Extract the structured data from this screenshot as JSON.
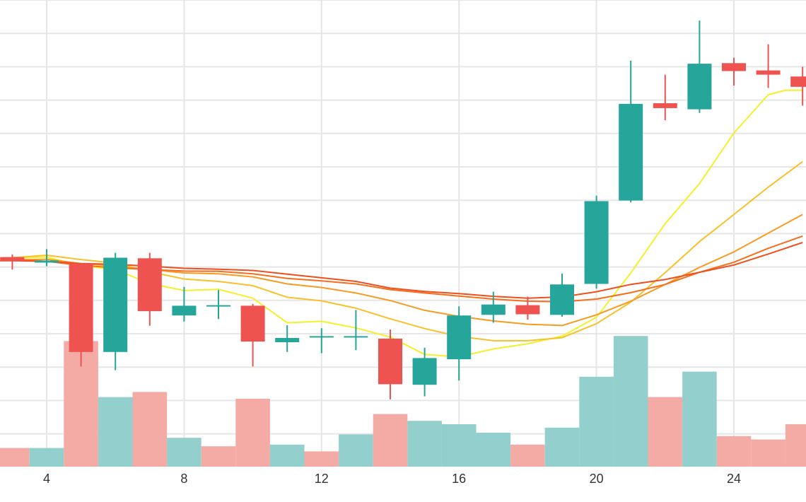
{
  "chart_data": {
    "type": "candlestick",
    "x_ticks": [
      "4",
      "8",
      "12",
      "16",
      "20",
      "24"
    ],
    "candles": [
      {
        "x": 3,
        "open": 66.6,
        "close": 65.2,
        "high": 67.5,
        "low": 62.5
      },
      {
        "x": 4,
        "open": 64.8,
        "close": 65.5,
        "high": 69.2,
        "low": 63.6
      },
      {
        "x": 5,
        "open": 64.5,
        "close": 35.4,
        "high": 64.5,
        "low": 30.6
      },
      {
        "x": 6,
        "open": 35.4,
        "close": 66.4,
        "high": 68.0,
        "low": 29.4
      },
      {
        "x": 7,
        "open": 66.2,
        "close": 48.8,
        "high": 68.0,
        "low": 44.0
      },
      {
        "x": 8,
        "open": 47.4,
        "close": 50.6,
        "high": 56.8,
        "low": 45.4
      },
      {
        "x": 9,
        "open": 50.8,
        "close": 50.8,
        "high": 55.8,
        "low": 46.2
      },
      {
        "x": 10,
        "open": 50.6,
        "close": 38.8,
        "high": 51.2,
        "low": 30.6
      },
      {
        "x": 11,
        "open": 38.6,
        "close": 40.0,
        "high": 44.2,
        "low": 35.4
      },
      {
        "x": 12,
        "open": 40.6,
        "close": 40.6,
        "high": 43.2,
        "low": 35.0
      },
      {
        "x": 13,
        "open": 40.6,
        "close": 40.6,
        "high": 49.2,
        "low": 36.0
      },
      {
        "x": 14,
        "open": 39.8,
        "close": 24.8,
        "high": 42.8,
        "low": 19.8
      },
      {
        "x": 15,
        "open": 24.6,
        "close": 33.4,
        "high": 36.8,
        "low": 20.8
      },
      {
        "x": 16,
        "open": 33.0,
        "close": 47.4,
        "high": 50.4,
        "low": 26.0
      },
      {
        "x": 17,
        "open": 47.6,
        "close": 51.0,
        "high": 55.2,
        "low": 45.0
      },
      {
        "x": 18,
        "open": 50.8,
        "close": 47.8,
        "high": 53.6,
        "low": 46.0
      },
      {
        "x": 19,
        "open": 47.6,
        "close": 57.6,
        "high": 61.2,
        "low": 47.0
      },
      {
        "x": 20,
        "open": 57.8,
        "close": 85.0,
        "high": 86.8,
        "low": 56.2
      },
      {
        "x": 21,
        "open": 85.2,
        "close": 117.0,
        "high": 131.2,
        "low": 84.6
      },
      {
        "x": 22,
        "open": 117.2,
        "close": 115.6,
        "high": 126.6,
        "low": 111.6
      },
      {
        "x": 23,
        "open": 115.2,
        "close": 130.2,
        "high": 144.4,
        "low": 114.0
      },
      {
        "x": 24,
        "open": 130.4,
        "close": 127.8,
        "high": 132.2,
        "low": 123.0
      },
      {
        "x": 25,
        "open": 128.0,
        "close": 126.6,
        "high": 136.6,
        "low": 122.2
      },
      {
        "x": 26,
        "open": 126.0,
        "close": 122.6,
        "high": 129.2,
        "low": 116.4
      }
    ],
    "volume": [
      {
        "x": 3,
        "value": 11,
        "dir": "down"
      },
      {
        "x": 4,
        "value": 11,
        "dir": "up"
      },
      {
        "x": 5,
        "value": 74,
        "dir": "down"
      },
      {
        "x": 6,
        "value": 41,
        "dir": "up"
      },
      {
        "x": 7,
        "value": 44,
        "dir": "down"
      },
      {
        "x": 8,
        "value": 17,
        "dir": "up"
      },
      {
        "x": 9,
        "value": 12,
        "dir": "down"
      },
      {
        "x": 10,
        "value": 40,
        "dir": "down"
      },
      {
        "x": 11,
        "value": 13,
        "dir": "up"
      },
      {
        "x": 12,
        "value": 9,
        "dir": "down"
      },
      {
        "x": 13,
        "value": 19,
        "dir": "up"
      },
      {
        "x": 14,
        "value": 31,
        "dir": "down"
      },
      {
        "x": 15,
        "value": 27,
        "dir": "up"
      },
      {
        "x": 16,
        "value": 25,
        "dir": "up"
      },
      {
        "x": 17,
        "value": 20,
        "dir": "up"
      },
      {
        "x": 18,
        "value": 13,
        "dir": "down"
      },
      {
        "x": 19,
        "value": 23,
        "dir": "up"
      },
      {
        "x": 20,
        "value": 53,
        "dir": "up"
      },
      {
        "x": 21,
        "value": 77,
        "dir": "up"
      },
      {
        "x": 22,
        "value": 41,
        "dir": "down"
      },
      {
        "x": 23,
        "value": 56,
        "dir": "up"
      },
      {
        "x": 24,
        "value": 18,
        "dir": "down"
      },
      {
        "x": 25,
        "value": 16,
        "dir": "down"
      },
      {
        "x": 26,
        "value": 25,
        "dir": "down"
      }
    ],
    "moving_averages": [
      {
        "color": "#f5ef2a",
        "points": [
          [
            2.5,
            66.2
          ],
          [
            3,
            66.3
          ],
          [
            4,
            66.6
          ],
          [
            5,
            63.8
          ],
          [
            6,
            62.5
          ],
          [
            7,
            57.9
          ],
          [
            8,
            55.6
          ],
          [
            9,
            56.0
          ],
          [
            10,
            53.1
          ],
          [
            11,
            45.0
          ],
          [
            12,
            45.5
          ],
          [
            13,
            43.3
          ],
          [
            14,
            40.3
          ],
          [
            15,
            34.6
          ],
          [
            16,
            33.8
          ],
          [
            17,
            36.4
          ],
          [
            18,
            38.1
          ],
          [
            19,
            40.6
          ],
          [
            20,
            46.8
          ],
          [
            21,
            61.4
          ],
          [
            22,
            77.6
          ],
          [
            23,
            90.8
          ],
          [
            24,
            107.4
          ],
          [
            25,
            120.0
          ],
          [
            25.5,
            121.5
          ],
          [
            26,
            121.5
          ]
        ]
      },
      {
        "color": "#f8c02b",
        "points": [
          [
            2.5,
            66.2
          ],
          [
            3,
            66.4
          ],
          [
            4,
            67.2
          ],
          [
            5,
            65.8
          ],
          [
            6,
            64.6
          ],
          [
            7,
            61.8
          ],
          [
            8,
            59.4
          ],
          [
            9,
            58.6
          ],
          [
            10,
            57.2
          ],
          [
            11,
            53.4
          ],
          [
            12,
            52.2
          ],
          [
            13,
            49.8
          ],
          [
            14,
            46.3
          ],
          [
            15,
            43.1
          ],
          [
            16,
            40.5
          ],
          [
            17,
            39.1
          ],
          [
            18,
            39.1
          ],
          [
            19,
            40.1
          ],
          [
            20,
            44.7
          ],
          [
            21,
            51.8
          ],
          [
            22,
            61.5
          ],
          [
            23,
            71.7
          ],
          [
            24,
            80.6
          ],
          [
            25,
            89.6
          ],
          [
            26,
            98.0
          ]
        ]
      },
      {
        "color": "#f99a23",
        "points": [
          [
            2.5,
            65.5
          ],
          [
            3,
            65.6
          ],
          [
            4,
            65.9
          ],
          [
            5,
            64.5
          ],
          [
            6,
            63.7
          ],
          [
            7,
            62.5
          ],
          [
            8,
            61.4
          ],
          [
            9,
            61.1
          ],
          [
            10,
            60.1
          ],
          [
            11,
            57.8
          ],
          [
            12,
            56.6
          ],
          [
            13,
            54.8
          ],
          [
            14,
            52.3
          ],
          [
            15,
            49.1
          ],
          [
            16,
            47.1
          ],
          [
            17,
            45.6
          ],
          [
            18,
            44.5
          ],
          [
            19,
            44.1
          ],
          [
            20,
            47.6
          ],
          [
            21,
            52.1
          ],
          [
            22,
            57.6
          ],
          [
            23,
            63.2
          ],
          [
            24,
            68.3
          ],
          [
            25,
            74.5
          ],
          [
            26,
            80.6
          ]
        ]
      },
      {
        "color": "#f46e1e",
        "points": [
          [
            2.5,
            66.2
          ],
          [
            3,
            66.0
          ],
          [
            4,
            65.2
          ],
          [
            5,
            63.9
          ],
          [
            6,
            63.1
          ],
          [
            7,
            62.5
          ],
          [
            8,
            62.0
          ],
          [
            9,
            61.9
          ],
          [
            10,
            61.1
          ],
          [
            11,
            59.6
          ],
          [
            12,
            58.8
          ],
          [
            13,
            57.8
          ],
          [
            14,
            55.9
          ],
          [
            15,
            54.8
          ],
          [
            16,
            53.8
          ],
          [
            17,
            52.8
          ],
          [
            18,
            52.1
          ],
          [
            19,
            51.9
          ],
          [
            20,
            52.8
          ],
          [
            21,
            54.9
          ],
          [
            22,
            57.6
          ],
          [
            23,
            61.6
          ],
          [
            24,
            64.9
          ],
          [
            25,
            69.5
          ],
          [
            26,
            73.5
          ]
        ]
      },
      {
        "color": "#ef4f1c",
        "points": [
          [
            2.5,
            65.4
          ],
          [
            3,
            65.4
          ],
          [
            4,
            65.2
          ],
          [
            5,
            64.5
          ],
          [
            6,
            64.2
          ],
          [
            7,
            63.6
          ],
          [
            8,
            62.9
          ],
          [
            9,
            62.6
          ],
          [
            10,
            62.2
          ],
          [
            11,
            61.0
          ],
          [
            12,
            59.8
          ],
          [
            13,
            58.6
          ],
          [
            14,
            56.4
          ],
          [
            15,
            55.3
          ],
          [
            16,
            54.6
          ],
          [
            17,
            53.7
          ],
          [
            18,
            53.1
          ],
          [
            19,
            53.5
          ],
          [
            20,
            55.2
          ],
          [
            21,
            57.6
          ],
          [
            22,
            59.2
          ],
          [
            23,
            61.6
          ],
          [
            24,
            64.0
          ],
          [
            25,
            67.6
          ],
          [
            26,
            71.4
          ]
        ]
      }
    ],
    "colors": {
      "up": "#26a69a",
      "down": "#ef5350",
      "up_volume": "#93cfcc",
      "down_volume": "#f4aaa5",
      "grid": "#e6e6e6",
      "axis_text": "#333333"
    },
    "grid": true
  }
}
